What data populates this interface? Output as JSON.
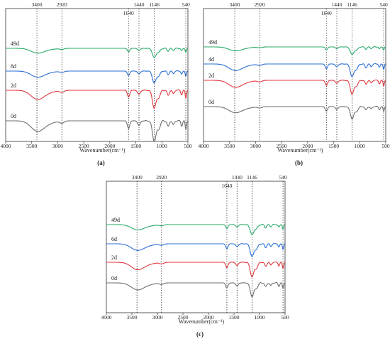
{
  "chart_data": [
    {
      "type": "line",
      "panel_label": "(a)",
      "xlabel": "Wavenumber(cm⁻¹)",
      "xlim": [
        4000,
        500
      ],
      "x_ticks": [
        4000,
        3500,
        3000,
        2500,
        2000,
        1500,
        1000,
        500
      ],
      "reference_lines": [
        {
          "x": 3400,
          "label": "3400"
        },
        {
          "x": 2920,
          "label": "2920"
        },
        {
          "x": 1640,
          "label": "1640"
        },
        {
          "x": 1440,
          "label": "1440"
        },
        {
          "x": 1146,
          "label": "1146"
        },
        {
          "x": 540,
          "label": "540"
        }
      ],
      "series": [
        {
          "name": "49d",
          "color": "#27a86a",
          "offset": 3.0,
          "amp": 0.55
        },
        {
          "name": "8d",
          "color": "#2a6fd6",
          "offset": 2.0,
          "amp": 0.7
        },
        {
          "name": "2d",
          "color": "#e0393e",
          "offset": 1.0,
          "amp": 1.05
        },
        {
          "name": "0d",
          "color": "#6e6e6e",
          "offset": 0.0,
          "amp": 1.2
        }
      ]
    },
    {
      "type": "line",
      "panel_label": "(b)",
      "xlabel": "Wavenumber(cm⁻¹)",
      "xlim": [
        4000,
        500
      ],
      "x_ticks": [
        4000,
        3500,
        3000,
        2500,
        2000,
        1500,
        1000,
        500
      ],
      "reference_lines": [
        {
          "x": 3400,
          "label": "3400"
        },
        {
          "x": 2920,
          "label": "2920"
        },
        {
          "x": 1640,
          "label": "1640"
        },
        {
          "x": 1440,
          "label": "1440"
        },
        {
          "x": 1146,
          "label": "1146"
        },
        {
          "x": 540,
          "label": "540"
        }
      ],
      "series": [
        {
          "name": "49d",
          "color": "#27a86a",
          "offset": 3.0,
          "amp": 0.45
        },
        {
          "name": "4d",
          "color": "#2a6fd6",
          "offset": 2.1,
          "amp": 0.75
        },
        {
          "name": "2d",
          "color": "#e0393e",
          "offset": 1.2,
          "amp": 0.8
        },
        {
          "name": "0d",
          "color": "#6e6e6e",
          "offset": 0.2,
          "amp": 0.7
        }
      ]
    },
    {
      "type": "line",
      "panel_label": "(c)",
      "xlabel": "Wavenumber(cm⁻¹)",
      "xlim": [
        4000,
        500
      ],
      "x_ticks": [
        4000,
        3500,
        3000,
        2500,
        2000,
        1500,
        1000,
        500
      ],
      "reference_lines": [
        {
          "x": 3400,
          "label": "3400"
        },
        {
          "x": 2920,
          "label": "2920"
        },
        {
          "x": 1640,
          "label": "1640"
        },
        {
          "x": 1440,
          "label": "1440"
        },
        {
          "x": 1146,
          "label": "1146"
        },
        {
          "x": 540,
          "label": "540"
        }
      ],
      "series": [
        {
          "name": "49d",
          "color": "#27a86a",
          "offset": 3.1,
          "amp": 0.6
        },
        {
          "name": "6d",
          "color": "#2a6fd6",
          "offset": 2.2,
          "amp": 0.75
        },
        {
          "name": "2d",
          "color": "#e0393e",
          "offset": 1.2,
          "amp": 0.85
        },
        {
          "name": "0d",
          "color": "#6e6e6e",
          "offset": 0.2,
          "amp": 0.8
        }
      ]
    }
  ]
}
